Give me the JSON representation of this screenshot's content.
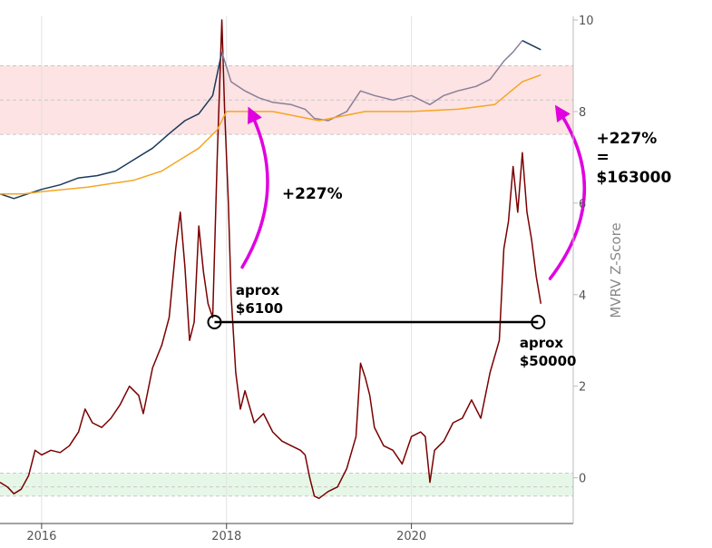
{
  "chart_data": {
    "type": "line",
    "title": "",
    "xlabel": "",
    "ylabel": "MVRV Z-Score",
    "xlim": [
      2015.55,
      2021.75
    ],
    "ylim": [
      -0.9,
      10
    ],
    "x_ticks": [
      {
        "value": 2016,
        "label": "2016"
      },
      {
        "value": 2018,
        "label": "2018"
      },
      {
        "value": 2020,
        "label": "2020"
      }
    ],
    "y_ticks": [
      {
        "value": 0,
        "label": "0"
      },
      {
        "value": 2,
        "label": "2"
      },
      {
        "value": 4,
        "label": "4"
      },
      {
        "value": 6,
        "label": "6"
      },
      {
        "value": 8,
        "label": "8"
      },
      {
        "value": 10,
        "label": "10"
      }
    ],
    "grid": "vertical at year ticks",
    "bands": [
      {
        "zone": "top",
        "from": 7.5,
        "to": 9.0,
        "color": "#fde3e3",
        "dashed_lines": [
          7.5,
          8.25,
          9.0
        ]
      },
      {
        "zone": "bottom",
        "from": -0.4,
        "to": 0.1,
        "color": "#e6f7e8",
        "dashed_lines": [
          -0.4,
          -0.2,
          0.1
        ]
      }
    ],
    "series": [
      {
        "color": "#7a0000",
        "points": [
          [
            2015.55,
            -0.1
          ],
          [
            2015.63,
            -0.2
          ],
          [
            2015.7,
            -0.35
          ],
          [
            2015.78,
            -0.25
          ],
          [
            2015.86,
            0.05
          ],
          [
            2015.93,
            0.6
          ],
          [
            2016.0,
            0.5
          ],
          [
            2016.1,
            0.6
          ],
          [
            2016.2,
            0.55
          ],
          [
            2016.3,
            0.7
          ],
          [
            2016.4,
            1.0
          ],
          [
            2016.47,
            1.5
          ],
          [
            2016.55,
            1.2
          ],
          [
            2016.65,
            1.1
          ],
          [
            2016.75,
            1.3
          ],
          [
            2016.85,
            1.6
          ],
          [
            2016.95,
            2.0
          ],
          [
            2017.05,
            1.8
          ],
          [
            2017.1,
            1.4
          ],
          [
            2017.2,
            2.4
          ],
          [
            2017.3,
            2.9
          ],
          [
            2017.38,
            3.5
          ],
          [
            2017.45,
            5.0
          ],
          [
            2017.5,
            5.8
          ],
          [
            2017.55,
            4.6
          ],
          [
            2017.6,
            3.0
          ],
          [
            2017.65,
            3.4
          ],
          [
            2017.7,
            5.5
          ],
          [
            2017.75,
            4.5
          ],
          [
            2017.8,
            3.8
          ],
          [
            2017.85,
            3.5
          ],
          [
            2017.9,
            7.0
          ],
          [
            2017.95,
            10.0
          ],
          [
            2017.98,
            8.0
          ],
          [
            2018.02,
            6.0
          ],
          [
            2018.05,
            4.0
          ],
          [
            2018.1,
            2.3
          ],
          [
            2018.15,
            1.5
          ],
          [
            2018.2,
            1.9
          ],
          [
            2018.3,
            1.2
          ],
          [
            2018.4,
            1.4
          ],
          [
            2018.5,
            1.0
          ],
          [
            2018.6,
            0.8
          ],
          [
            2018.7,
            0.7
          ],
          [
            2018.8,
            0.6
          ],
          [
            2018.85,
            0.5
          ],
          [
            2018.9,
            0.0
          ],
          [
            2018.95,
            -0.4
          ],
          [
            2019.0,
            -0.45
          ],
          [
            2019.1,
            -0.3
          ],
          [
            2019.2,
            -0.2
          ],
          [
            2019.3,
            0.2
          ],
          [
            2019.4,
            0.9
          ],
          [
            2019.45,
            2.5
          ],
          [
            2019.5,
            2.2
          ],
          [
            2019.55,
            1.8
          ],
          [
            2019.6,
            1.1
          ],
          [
            2019.7,
            0.7
          ],
          [
            2019.8,
            0.6
          ],
          [
            2019.9,
            0.3
          ],
          [
            2020.0,
            0.9
          ],
          [
            2020.1,
            1.0
          ],
          [
            2020.15,
            0.9
          ],
          [
            2020.2,
            -0.1
          ],
          [
            2020.25,
            0.6
          ],
          [
            2020.35,
            0.8
          ],
          [
            2020.45,
            1.2
          ],
          [
            2020.55,
            1.3
          ],
          [
            2020.65,
            1.7
          ],
          [
            2020.75,
            1.3
          ],
          [
            2020.85,
            2.3
          ],
          [
            2020.95,
            3.0
          ],
          [
            2021.0,
            5.0
          ],
          [
            2021.05,
            5.6
          ],
          [
            2021.1,
            6.8
          ],
          [
            2021.15,
            5.8
          ],
          [
            2021.2,
            7.1
          ],
          [
            2021.25,
            5.8
          ],
          [
            2021.3,
            5.2
          ],
          [
            2021.35,
            4.4
          ],
          [
            2021.4,
            3.8
          ]
        ]
      },
      {
        "color": "#1a3a5c",
        "points": [
          [
            2015.55,
            6.2
          ],
          [
            2015.7,
            6.1
          ],
          [
            2015.85,
            6.2
          ],
          [
            2016.0,
            6.3
          ],
          [
            2016.2,
            6.4
          ],
          [
            2016.4,
            6.55
          ],
          [
            2016.6,
            6.6
          ],
          [
            2016.8,
            6.7
          ],
          [
            2017.0,
            6.95
          ],
          [
            2017.2,
            7.2
          ],
          [
            2017.4,
            7.55
          ],
          [
            2017.55,
            7.8
          ],
          [
            2017.7,
            7.95
          ],
          [
            2017.85,
            8.35
          ],
          [
            2017.95,
            9.3
          ]
        ]
      },
      {
        "color": "#8a7f98",
        "points": [
          [
            2017.95,
            9.3
          ],
          [
            2018.05,
            8.65
          ],
          [
            2018.2,
            8.45
          ],
          [
            2018.35,
            8.3
          ],
          [
            2018.5,
            8.2
          ],
          [
            2018.7,
            8.15
          ],
          [
            2018.85,
            8.05
          ],
          [
            2018.95,
            7.85
          ],
          [
            2019.1,
            7.8
          ],
          [
            2019.3,
            8.0
          ],
          [
            2019.45,
            8.45
          ],
          [
            2019.6,
            8.35
          ],
          [
            2019.8,
            8.25
          ],
          [
            2020.0,
            8.35
          ],
          [
            2020.2,
            8.15
          ],
          [
            2020.35,
            8.35
          ],
          [
            2020.5,
            8.45
          ],
          [
            2020.7,
            8.55
          ],
          [
            2020.85,
            8.7
          ],
          [
            2021.0,
            9.1
          ],
          [
            2021.1,
            9.3
          ],
          [
            2021.2,
            9.55
          ]
        ]
      },
      {
        "color": "#1a3a5c",
        "points": [
          [
            2021.2,
            9.55
          ],
          [
            2021.3,
            9.45
          ],
          [
            2021.4,
            9.35
          ]
        ]
      },
      {
        "color": "#f5a623",
        "points": [
          [
            2015.55,
            6.2
          ],
          [
            2015.8,
            6.2
          ],
          [
            2016.0,
            6.25
          ],
          [
            2016.5,
            6.35
          ],
          [
            2017.0,
            6.5
          ],
          [
            2017.3,
            6.7
          ],
          [
            2017.5,
            6.95
          ],
          [
            2017.7,
            7.2
          ],
          [
            2017.9,
            7.6
          ],
          [
            2018.0,
            8.0
          ],
          [
            2018.5,
            8.0
          ],
          [
            2019.0,
            7.8
          ],
          [
            2019.5,
            8.0
          ],
          [
            2020.0,
            8.0
          ],
          [
            2020.5,
            8.05
          ],
          [
            2020.9,
            8.15
          ],
          [
            2021.05,
            8.4
          ],
          [
            2021.2,
            8.65
          ],
          [
            2021.4,
            8.8
          ]
        ]
      }
    ],
    "annotations": [
      {
        "text": "aprox",
        "x": 2018.1,
        "y": 4.0
      },
      {
        "text": "$6100",
        "x": 2018.1,
        "y": 3.6
      },
      {
        "text": "aprox",
        "x": 2021.17,
        "y": 2.85
      },
      {
        "text": "$50000",
        "x": 2021.17,
        "y": 2.45
      },
      {
        "text": "+227%",
        "x": 2018.6,
        "y": 6.1
      },
      {
        "text": "+227%",
        "x": 2022.0,
        "y": 7.3
      },
      {
        "text": "=",
        "x": 2022.0,
        "y": 6.9
      },
      {
        "text": "$163000",
        "x": 2022.0,
        "y": 6.45
      }
    ],
    "markers": [
      {
        "x": 2017.87,
        "y": 3.4
      },
      {
        "x": 2021.37,
        "y": 3.4
      }
    ],
    "arrows": [
      {
        "color": "#e000e0",
        "from": [
          2018.17,
          4.6
        ],
        "to": [
          2018.27,
          7.95
        ]
      },
      {
        "color": "#e000e0",
        "from": [
          2021.5,
          4.35
        ],
        "to": [
          2021.6,
          8.0
        ]
      }
    ]
  }
}
